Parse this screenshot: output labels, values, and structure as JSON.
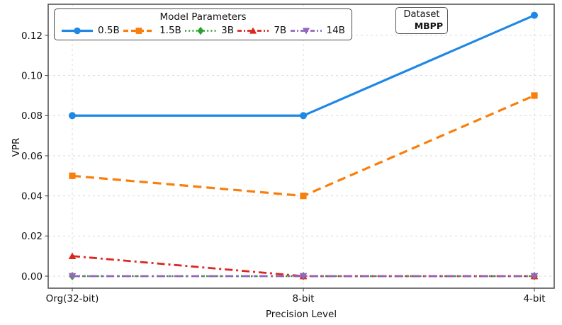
{
  "chart_data": {
    "type": "line",
    "title": "",
    "xlabel": "Precision Level",
    "ylabel": "VPR",
    "categories": [
      "Org(32-bit)",
      "8-bit",
      "4-bit"
    ],
    "yticks": [
      0.0,
      0.02,
      0.04,
      0.06,
      0.08,
      0.1,
      0.12
    ],
    "ytick_labels": [
      "0.00",
      "0.02",
      "0.04",
      "0.06",
      "0.08",
      "0.10",
      "0.12"
    ],
    "ylim": [
      -0.006,
      0.1355
    ],
    "grid": true,
    "legend_title": "Model Parameters",
    "legend_position": "upper-left",
    "series": [
      {
        "name": "0.5B",
        "values": [
          0.08,
          0.08,
          0.13
        ],
        "color": "#1f88e5",
        "line": "solid",
        "marker": "circle",
        "width": 3.2
      },
      {
        "name": "1.5B",
        "values": [
          0.05,
          0.04,
          0.09
        ],
        "color": "#f97e0b",
        "line": "dashed",
        "marker": "square",
        "width": 3.2
      },
      {
        "name": "3B",
        "values": [
          0.0,
          0.0,
          0.0
        ],
        "color": "#2ca02c",
        "line": "dotted",
        "marker": "diamond",
        "width": 2.6
      },
      {
        "name": "7B",
        "values": [
          0.01,
          0.0,
          0.0
        ],
        "color": "#dc2721",
        "line": "dashdot",
        "marker": "triangle-up",
        "width": 2.8
      },
      {
        "name": "14B",
        "values": [
          0.0,
          0.0,
          0.0
        ],
        "color": "#9467bd",
        "line": "dashdot",
        "marker": "triangle-down",
        "width": 2.8
      }
    ],
    "annotation_box": {
      "title": "Dataset",
      "value": "MBPP"
    }
  },
  "style_colors": {
    "grid": "#d9d9d9",
    "frame": "#555555",
    "tick_text": "#111111"
  }
}
